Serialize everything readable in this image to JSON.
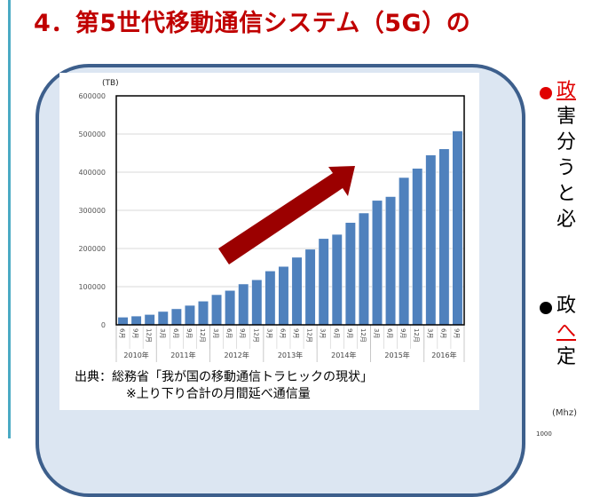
{
  "slide": {
    "title": "4．第5世代移動通信システム（5G）の",
    "source_line1": "出典：総務省「我が国の移動通信トラヒックの現状」",
    "source_line2": "※上り下り合計の月間延べ通信量",
    "right_text": {
      "bullet1_head": "政",
      "bullet1_lines": [
        "害",
        "分",
        "う",
        "と",
        "必"
      ],
      "bullet2_head": "政",
      "bullet2_red": "へ",
      "bullet2_line": "定",
      "unit_mhz": "(Mhz)",
      "tick_partial": "1000"
    },
    "colors": {
      "title": "#c00000",
      "bar": "#4f81bd",
      "arrow": "#9b0000",
      "frame": "#3d5f8c",
      "frame_fill": "#dce6f2"
    }
  },
  "chart_data": {
    "type": "bar",
    "ylabel": "(TB)",
    "ylim": [
      0,
      600000
    ],
    "yticks": [
      "0",
      "100000",
      "200000",
      "300000",
      "400000",
      "500000",
      "600000"
    ],
    "grid": true,
    "categories": [
      "6月",
      "9月",
      "12月",
      "3月",
      "6月",
      "9月",
      "12月",
      "3月",
      "6月",
      "9月",
      "12月",
      "3月",
      "6月",
      "9月",
      "12月",
      "3月",
      "6月",
      "9月",
      "12月",
      "3月",
      "6月",
      "9月",
      "12月",
      "3月",
      "6月",
      "9月"
    ],
    "year_groups": [
      {
        "label": "2010年",
        "count": 3
      },
      {
        "label": "2011年",
        "count": 4
      },
      {
        "label": "2012年",
        "count": 4
      },
      {
        "label": "2013年",
        "count": 4
      },
      {
        "label": "2014年",
        "count": 4
      },
      {
        "label": "2015年",
        "count": 4
      },
      {
        "label": "2016年",
        "count": 3
      }
    ],
    "values": [
      20000,
      23000,
      27000,
      35000,
      42000,
      51000,
      62000,
      79000,
      90000,
      107000,
      118000,
      141000,
      153000,
      177000,
      198000,
      226000,
      237000,
      268000,
      293000,
      326000,
      336000,
      386000,
      410000,
      445000,
      461000,
      508000
    ],
    "annotation": "upward-trend-arrow"
  }
}
